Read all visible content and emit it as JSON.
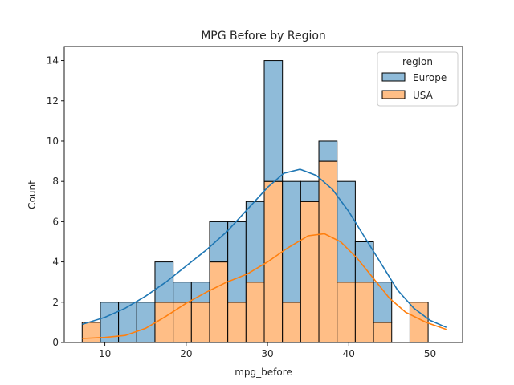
{
  "chart_data": {
    "type": "bar",
    "subtype": "stacked-histogram-with-kde",
    "title": "MPG Before by Region",
    "xlabel": "mpg_before",
    "ylabel": "Count",
    "xlim": [
      5,
      54
    ],
    "ylim": [
      0,
      14.7
    ],
    "xticks": [
      10,
      20,
      30,
      40,
      50
    ],
    "yticks": [
      0,
      2,
      4,
      6,
      8,
      10,
      12,
      14
    ],
    "bin_start": 7.2,
    "bin_width": 2.24,
    "grid": false,
    "legend": {
      "title": "region",
      "placement": "top-right"
    },
    "series": [
      {
        "name": "USA",
        "color": "#ffbe86",
        "edge_color": "#000000",
        "values": [
          1,
          0,
          0,
          0,
          2,
          2,
          2,
          4,
          2,
          3,
          8,
          2,
          7,
          9,
          3,
          3,
          1,
          0,
          2
        ],
        "kde_color": "#ff7f0e",
        "kde": [
          [
            7.2,
            0.2
          ],
          [
            10,
            0.25
          ],
          [
            12.5,
            0.35
          ],
          [
            15,
            0.7
          ],
          [
            17.5,
            1.3
          ],
          [
            20,
            1.95
          ],
          [
            22.5,
            2.5
          ],
          [
            25,
            3.0
          ],
          [
            27.5,
            3.4
          ],
          [
            30,
            4.0
          ],
          [
            32.5,
            4.7
          ],
          [
            35,
            5.3
          ],
          [
            37,
            5.4
          ],
          [
            39,
            5.0
          ],
          [
            41,
            4.2
          ],
          [
            43,
            3.2
          ],
          [
            45,
            2.2
          ],
          [
            47,
            1.5
          ],
          [
            49.5,
            1.0
          ],
          [
            52,
            0.65
          ]
        ]
      },
      {
        "name": "Europe",
        "color": "#8fbbd9",
        "edge_color": "#000000",
        "values": [
          0,
          2,
          2,
          2,
          2,
          1,
          1,
          2,
          4,
          4,
          6,
          6,
          1,
          1,
          5,
          2,
          2,
          0,
          0
        ],
        "kde_color": "#1f77b4",
        "kde": [
          [
            7.2,
            0.9
          ],
          [
            10,
            1.25
          ],
          [
            12.5,
            1.7
          ],
          [
            15,
            2.3
          ],
          [
            17.5,
            3.0
          ],
          [
            20,
            3.8
          ],
          [
            22.5,
            4.6
          ],
          [
            25,
            5.5
          ],
          [
            27.5,
            6.6
          ],
          [
            30,
            7.7
          ],
          [
            32,
            8.4
          ],
          [
            34,
            8.6
          ],
          [
            36,
            8.3
          ],
          [
            38,
            7.6
          ],
          [
            40,
            6.5
          ],
          [
            42,
            5.2
          ],
          [
            44,
            3.9
          ],
          [
            46,
            2.6
          ],
          [
            48,
            1.7
          ],
          [
            50,
            1.1
          ],
          [
            52,
            0.75
          ]
        ]
      }
    ],
    "stack_order": [
      "USA",
      "Europe"
    ]
  }
}
